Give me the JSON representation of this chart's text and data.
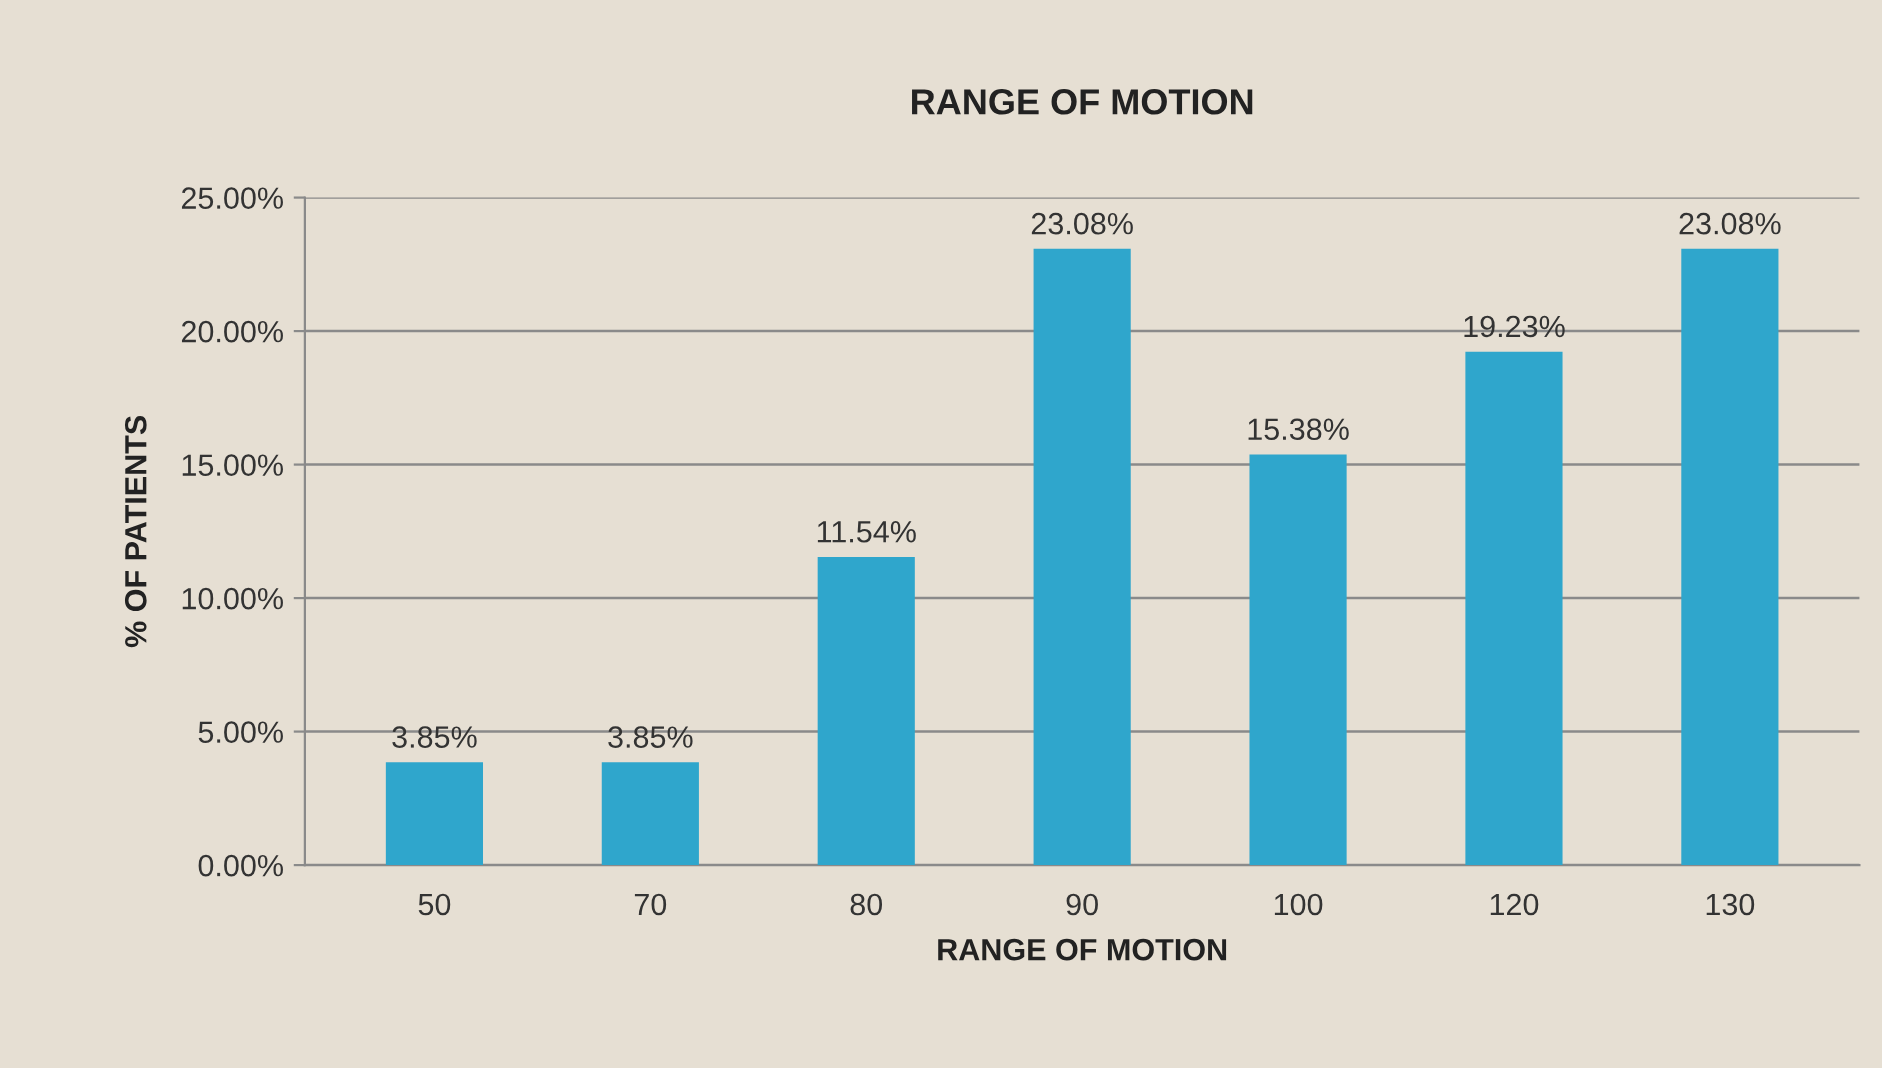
{
  "chart_data": {
    "type": "bar",
    "title": "RANGE OF MOTION",
    "xlabel": "RANGE OF MOTION",
    "ylabel": "% OF PATIENTS",
    "categories": [
      "50",
      "70",
      "80",
      "90",
      "100",
      "120",
      "130"
    ],
    "values": [
      3.85,
      3.85,
      11.54,
      23.08,
      15.38,
      19.23,
      23.08
    ],
    "value_labels": [
      "3.85%",
      "3.85%",
      "11.54%",
      "23.08%",
      "15.38%",
      "19.23%",
      "23.08%"
    ],
    "color": "#2fa6cc",
    "ylim": [
      0,
      25
    ],
    "yticks": [
      {
        "value": 0,
        "label": "0.00%"
      },
      {
        "value": 5,
        "label": "5.00%"
      },
      {
        "value": 10,
        "label": "10.00%"
      },
      {
        "value": 15,
        "label": "15.00%"
      },
      {
        "value": 20,
        "label": "20.00%"
      },
      {
        "value": 25,
        "label": "25.00%"
      }
    ],
    "grid": "y",
    "legend": false
  }
}
